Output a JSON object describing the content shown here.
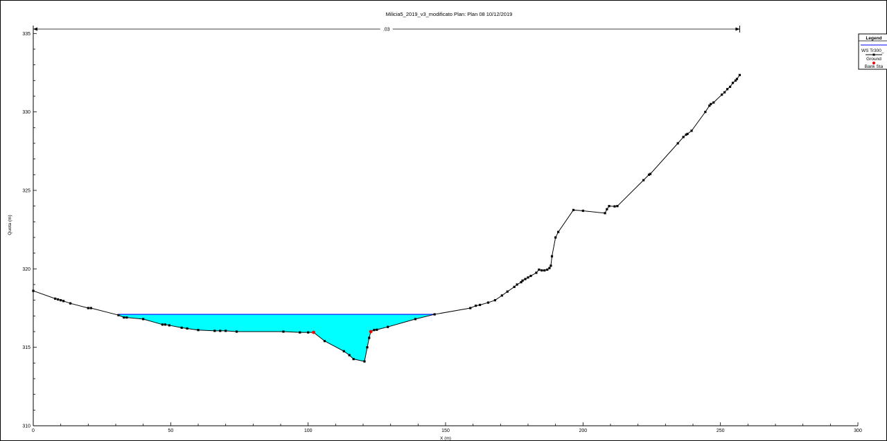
{
  "chart_data": {
    "type": "line",
    "title": "Milicia5_2019_v3_modificato       Plan: Plan 08    10/12/2019",
    "xlabel": "X (m)",
    "ylabel": "Quota (m)",
    "xlim": [
      0,
      300
    ],
    "ylim": [
      310,
      335.5
    ],
    "x_ticks": [
      "0",
      "50",
      "100",
      "150",
      "200",
      "250",
      "300"
    ],
    "y_ticks": [
      "310",
      "315",
      "320",
      "325",
      "330",
      "335"
    ],
    "grid": false,
    "legend_position": "top-right",
    "legend": {
      "title": "Legend",
      "items": [
        "WS Tr300_",
        "Ground",
        "Bank Sta"
      ]
    },
    "manning": {
      "label": ".03",
      "x_start": 0,
      "x_end": 257
    },
    "water_surface": {
      "name": "WS Tr300_",
      "elevation": 317.1,
      "x_left": 31,
      "x_right": 146,
      "color": "#0000ff",
      "fill": "#00ffff"
    },
    "ground": {
      "name": "Ground",
      "color": "#000000",
      "points": [
        [
          0,
          318.6
        ],
        [
          8,
          318.1
        ],
        [
          9,
          318.05
        ],
        [
          10,
          318.0
        ],
        [
          11,
          317.95
        ],
        [
          13.5,
          317.8
        ],
        [
          20,
          317.5
        ],
        [
          21,
          317.5
        ],
        [
          31,
          317.05
        ],
        [
          33,
          316.9
        ],
        [
          34,
          316.9
        ],
        [
          40,
          316.8
        ],
        [
          47,
          316.45
        ],
        [
          48,
          316.45
        ],
        [
          49.5,
          316.4
        ],
        [
          54,
          316.25
        ],
        [
          56,
          316.2
        ],
        [
          60,
          316.1
        ],
        [
          66,
          316.05
        ],
        [
          68,
          316.05
        ],
        [
          70,
          316.05
        ],
        [
          74,
          316.0
        ],
        [
          91,
          316.0
        ],
        [
          97,
          315.95
        ],
        [
          100,
          315.95
        ],
        [
          102,
          315.95
        ],
        [
          106,
          315.4
        ],
        [
          113,
          314.75
        ],
        [
          115,
          314.5
        ],
        [
          116.5,
          314.25
        ],
        [
          120.5,
          314.1
        ],
        [
          121.5,
          315.0
        ],
        [
          122.2,
          315.6
        ],
        [
          122.8,
          316.0
        ],
        [
          124,
          316.1
        ],
        [
          125,
          316.12
        ],
        [
          129,
          316.3
        ],
        [
          139,
          316.8
        ],
        [
          146,
          317.1
        ],
        [
          159,
          317.5
        ],
        [
          161,
          317.65
        ],
        [
          162.5,
          317.7
        ],
        [
          165.5,
          317.85
        ],
        [
          168,
          318.0
        ],
        [
          170.5,
          318.3
        ],
        [
          172.5,
          318.55
        ],
        [
          175,
          318.85
        ],
        [
          176,
          319.0
        ],
        [
          177.5,
          319.15
        ],
        [
          178,
          319.25
        ],
        [
          179,
          319.35
        ],
        [
          180,
          319.45
        ],
        [
          181,
          319.55
        ],
        [
          183,
          319.75
        ],
        [
          184,
          319.95
        ],
        [
          185,
          319.9
        ],
        [
          186,
          319.9
        ],
        [
          187,
          319.95
        ],
        [
          187.8,
          320.05
        ],
        [
          188.3,
          320.2
        ],
        [
          188.7,
          320.8
        ],
        [
          190,
          322.0
        ],
        [
          191,
          322.35
        ],
        [
          196.5,
          323.75
        ],
        [
          200,
          323.7
        ],
        [
          208,
          323.55
        ],
        [
          208.7,
          323.8
        ],
        [
          209.5,
          324.0
        ],
        [
          211.5,
          323.98
        ],
        [
          212.5,
          324.0
        ],
        [
          222,
          325.65
        ],
        [
          224,
          326.0
        ],
        [
          224.5,
          326.05
        ],
        [
          234.5,
          328.0
        ],
        [
          236.5,
          328.4
        ],
        [
          237.5,
          328.55
        ],
        [
          238,
          328.6
        ],
        [
          239.5,
          328.8
        ],
        [
          244.5,
          330.0
        ],
        [
          246,
          330.4
        ],
        [
          246.5,
          330.5
        ],
        [
          247.5,
          330.6
        ],
        [
          250.5,
          331.1
        ],
        [
          251.5,
          331.25
        ],
        [
          252.5,
          331.45
        ],
        [
          253.5,
          331.6
        ],
        [
          254.5,
          331.85
        ],
        [
          255.5,
          332.0
        ],
        [
          256,
          332.1
        ],
        [
          257,
          332.35
        ]
      ]
    },
    "bank_stations": {
      "name": "Bank Sta",
      "color": "#ff0000",
      "points": [
        [
          102,
          315.95
        ],
        [
          122.8,
          316.0
        ]
      ]
    }
  }
}
